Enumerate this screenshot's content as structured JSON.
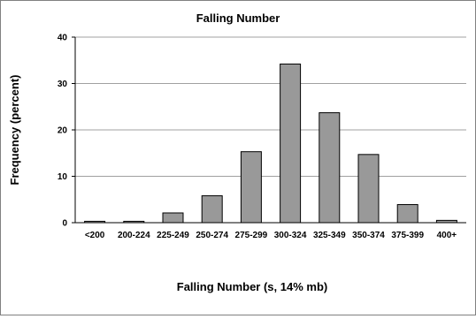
{
  "chart_data": {
    "type": "bar",
    "title": "Falling Number",
    "xlabel": "Falling Number (s, 14% mb)",
    "ylabel": "Frequency (percent)",
    "categories": [
      "<200",
      "200-224",
      "225-249",
      "250-274",
      "275-299",
      "300-324",
      "325-349",
      "350-374",
      "375-399",
      "400+"
    ],
    "values": [
      0.3,
      0.3,
      2.1,
      5.8,
      15.3,
      34.2,
      23.7,
      14.7,
      3.9,
      0.5
    ],
    "ylim": [
      0,
      40
    ],
    "yticks": [
      0,
      10,
      20,
      30,
      40
    ],
    "grid": true,
    "legend": "none",
    "colors": {
      "bar_fill": "#999999",
      "bar_stroke": "#000000",
      "grid": "#a0a0a0",
      "frame": "#808080"
    }
  }
}
